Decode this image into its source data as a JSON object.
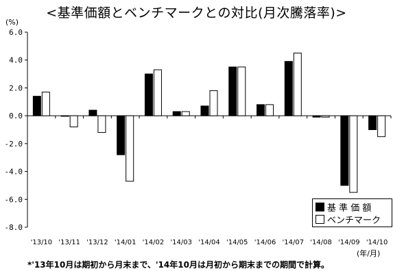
{
  "title": "<基準価額とベンチマークとの対比(月次騰落率)>",
  "y_unit": "(%)",
  "x_unit": "(年/月)",
  "footnote": "*'13年10月は期初から月末まで、'14年10月は月初から期末までの期間で計算。",
  "colors": {
    "fund": "#000000",
    "benchmark": "#ffffff",
    "outline": "#000000"
  },
  "chart_data": {
    "type": "bar",
    "categories": [
      "'13/10",
      "'13/11",
      "'13/12",
      "'14/01",
      "'14/02",
      "'14/03",
      "'14/04",
      "'14/05",
      "'14/06",
      "'14/07",
      "'14/08",
      "'14/09",
      "'14/10"
    ],
    "series": [
      {
        "name": "基 準 価 額",
        "values": [
          1.4,
          0.0,
          0.4,
          -2.8,
          3.0,
          0.3,
          0.7,
          3.5,
          0.8,
          3.9,
          -0.1,
          -5.0,
          -1.0
        ]
      },
      {
        "name": "ベンチマーク",
        "values": [
          1.7,
          -0.8,
          -1.2,
          -4.7,
          3.3,
          0.3,
          1.8,
          3.5,
          0.8,
          4.5,
          -0.1,
          -5.5,
          -1.5
        ]
      }
    ],
    "y_ticks": [
      "6.0",
      "4.0",
      "2.0",
      "0.0",
      "-2.0",
      "-4.0",
      "-6.0",
      "-8.0"
    ],
    "ylim": [
      -8,
      6
    ],
    "legend_position": "bottom-right",
    "grid": false
  }
}
